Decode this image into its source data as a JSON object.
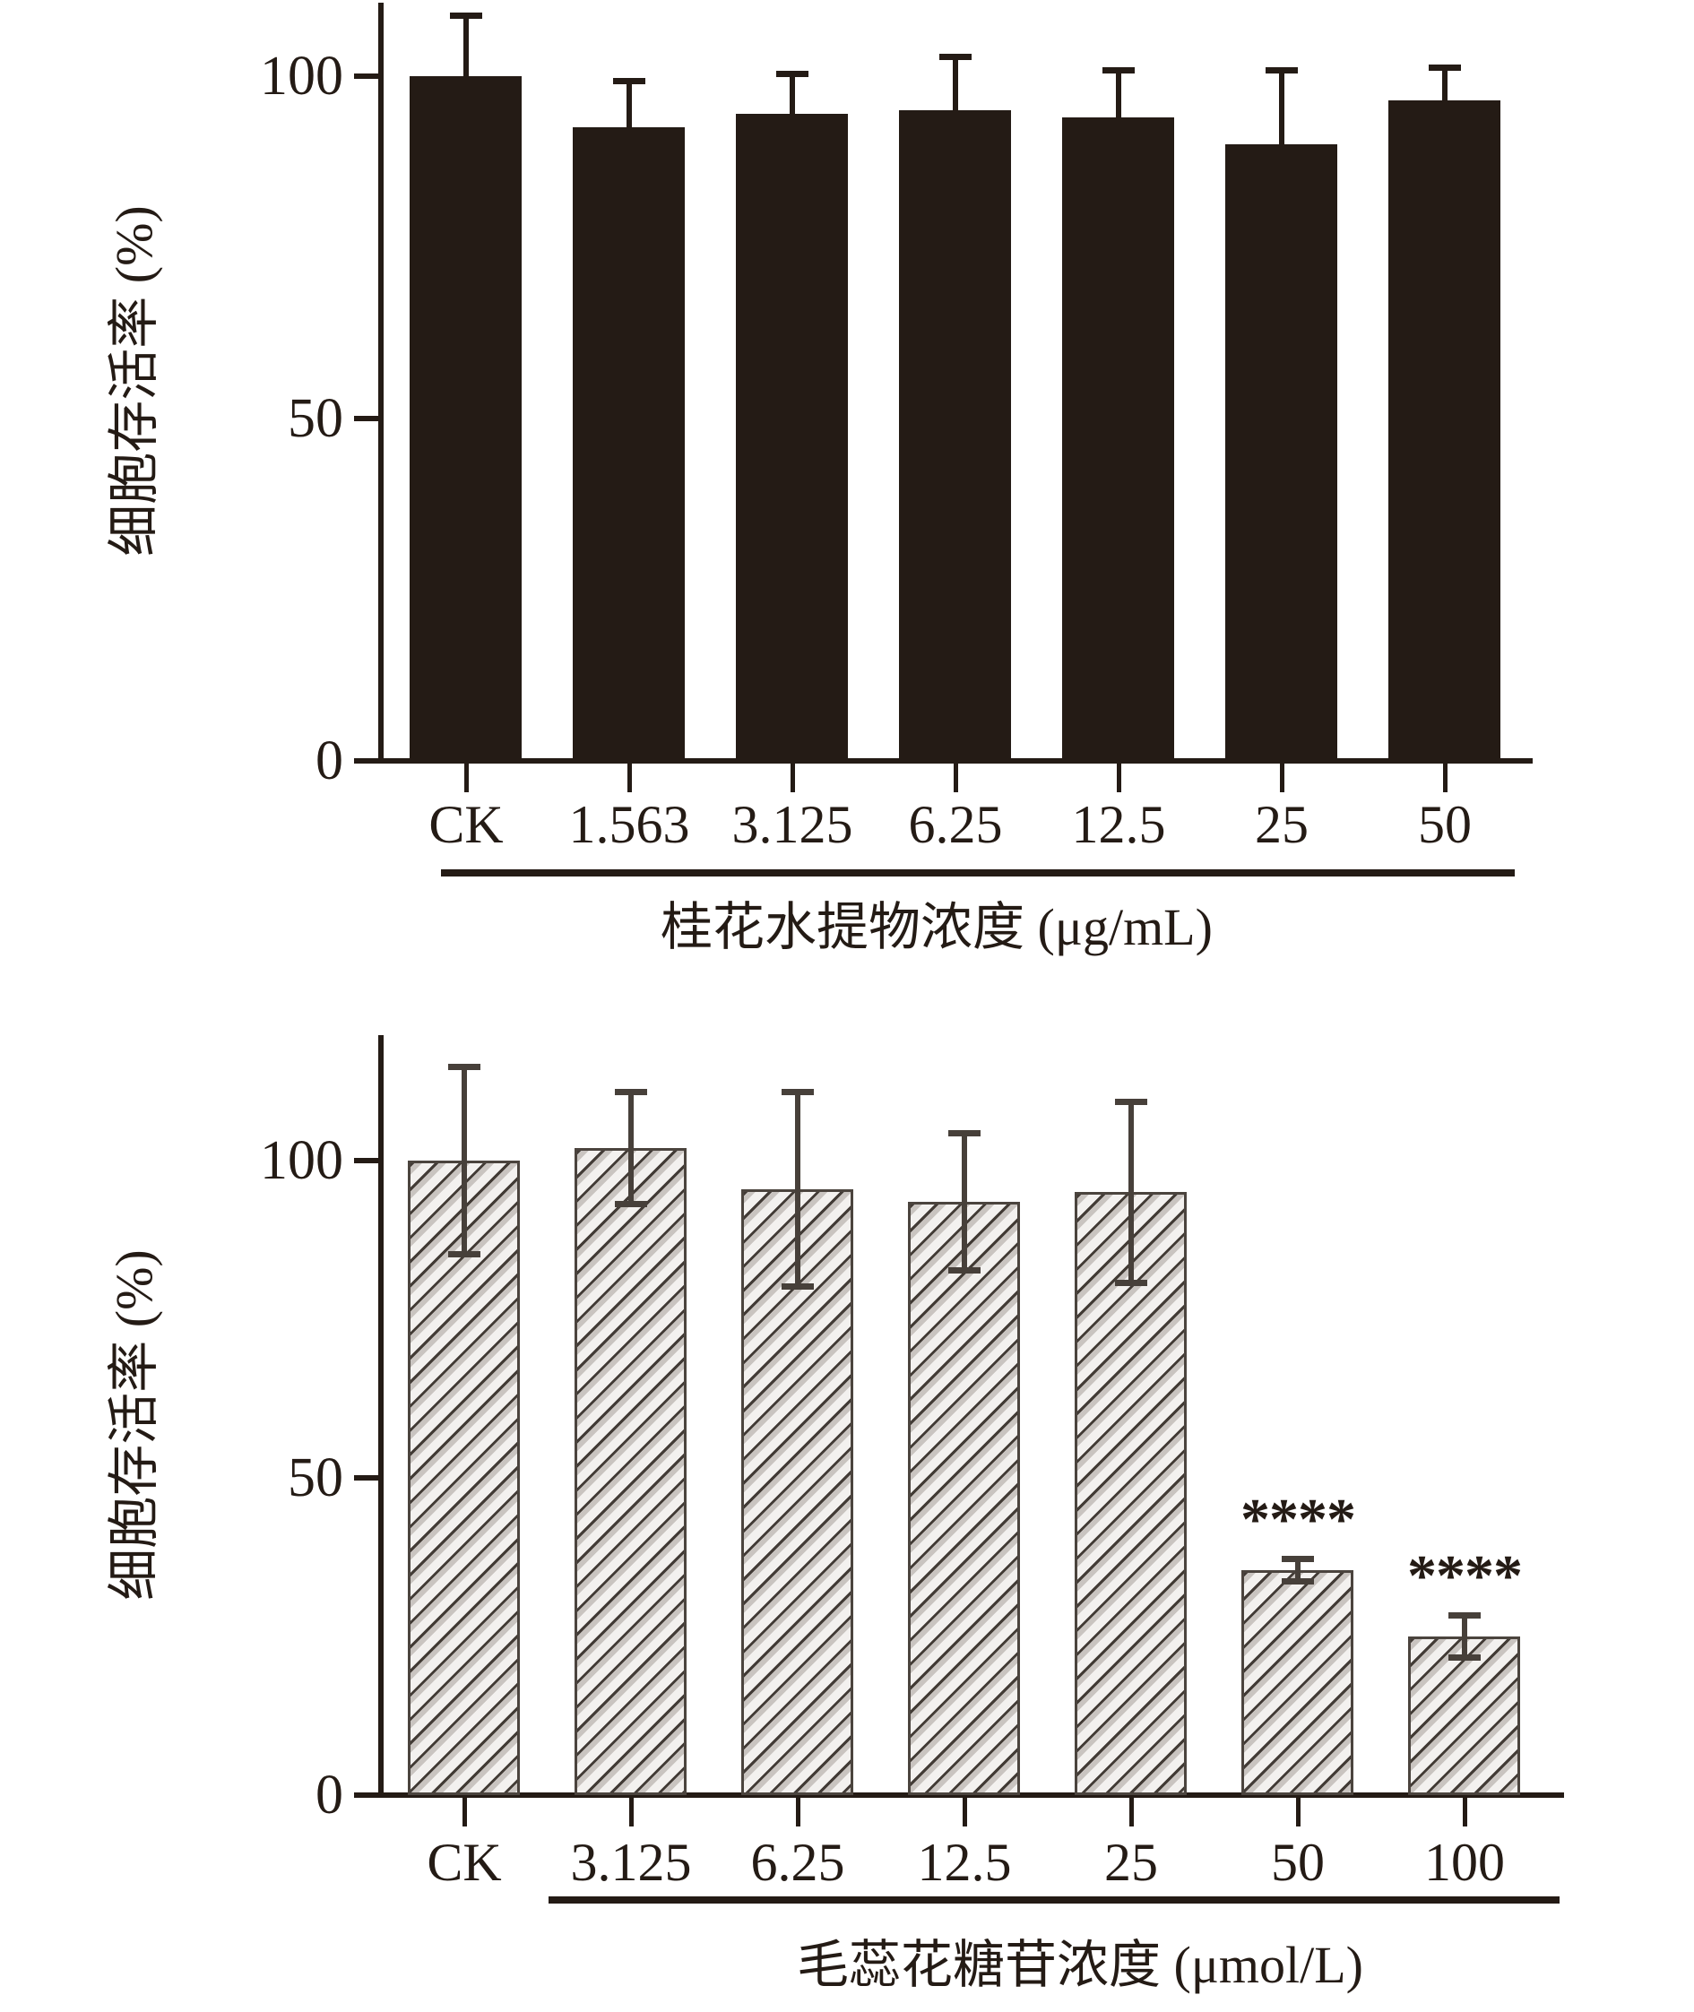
{
  "figure": {
    "background": "#ffffff",
    "ink_color": "#241b15",
    "hatch_band_color": "#c9c4c0",
    "hatch_bg_color": "#f3f1ef",
    "hatch_border_color": "#4b443e"
  },
  "chart_data": [
    {
      "type": "bar",
      "title": "",
      "ylabel": "细胞存活率 (%)",
      "xlabel": "桂花水提物浓度 (μg/mL)",
      "categories": [
        "CK",
        "1.563",
        "3.125",
        "6.25",
        "12.5",
        "25",
        "50"
      ],
      "values": [
        100,
        92.5,
        94.5,
        95,
        94,
        90,
        96.5
      ],
      "errors": [
        9,
        7,
        6,
        8,
        7,
        11,
        5
      ],
      "significance": [
        "",
        "",
        "",
        "",
        "",
        "",
        ""
      ],
      "yticks": [
        "0",
        "50",
        "100"
      ],
      "ytick_values": [
        0,
        50,
        100
      ],
      "ylim": [
        0,
        111
      ],
      "bar_style": "solid-black",
      "legend": "none",
      "grid": false,
      "treatment_group_span": [
        "1.563",
        "50"
      ]
    },
    {
      "type": "bar",
      "title": "",
      "ylabel": "细胞存活率 (%)",
      "xlabel": "毛蕊花糖苷浓度 (μmol/L)",
      "categories": [
        "CK",
        "3.125",
        "6.25",
        "12.5",
        "25",
        "50",
        "100"
      ],
      "values": [
        100,
        102,
        95.5,
        93.5,
        95,
        35.5,
        25
      ],
      "errors": [
        15,
        9,
        15.5,
        11,
        14.5,
        2,
        3.5
      ],
      "significance": [
        "",
        "",
        "",
        "",
        "",
        "****",
        "****"
      ],
      "yticks": [
        "0",
        "50",
        "100"
      ],
      "ytick_values": [
        0,
        50,
        100
      ],
      "ylim": [
        0,
        120
      ],
      "bar_style": "diagonal-hatch",
      "legend": "none",
      "grid": false,
      "treatment_group_span": [
        "3.125",
        "100"
      ]
    }
  ]
}
